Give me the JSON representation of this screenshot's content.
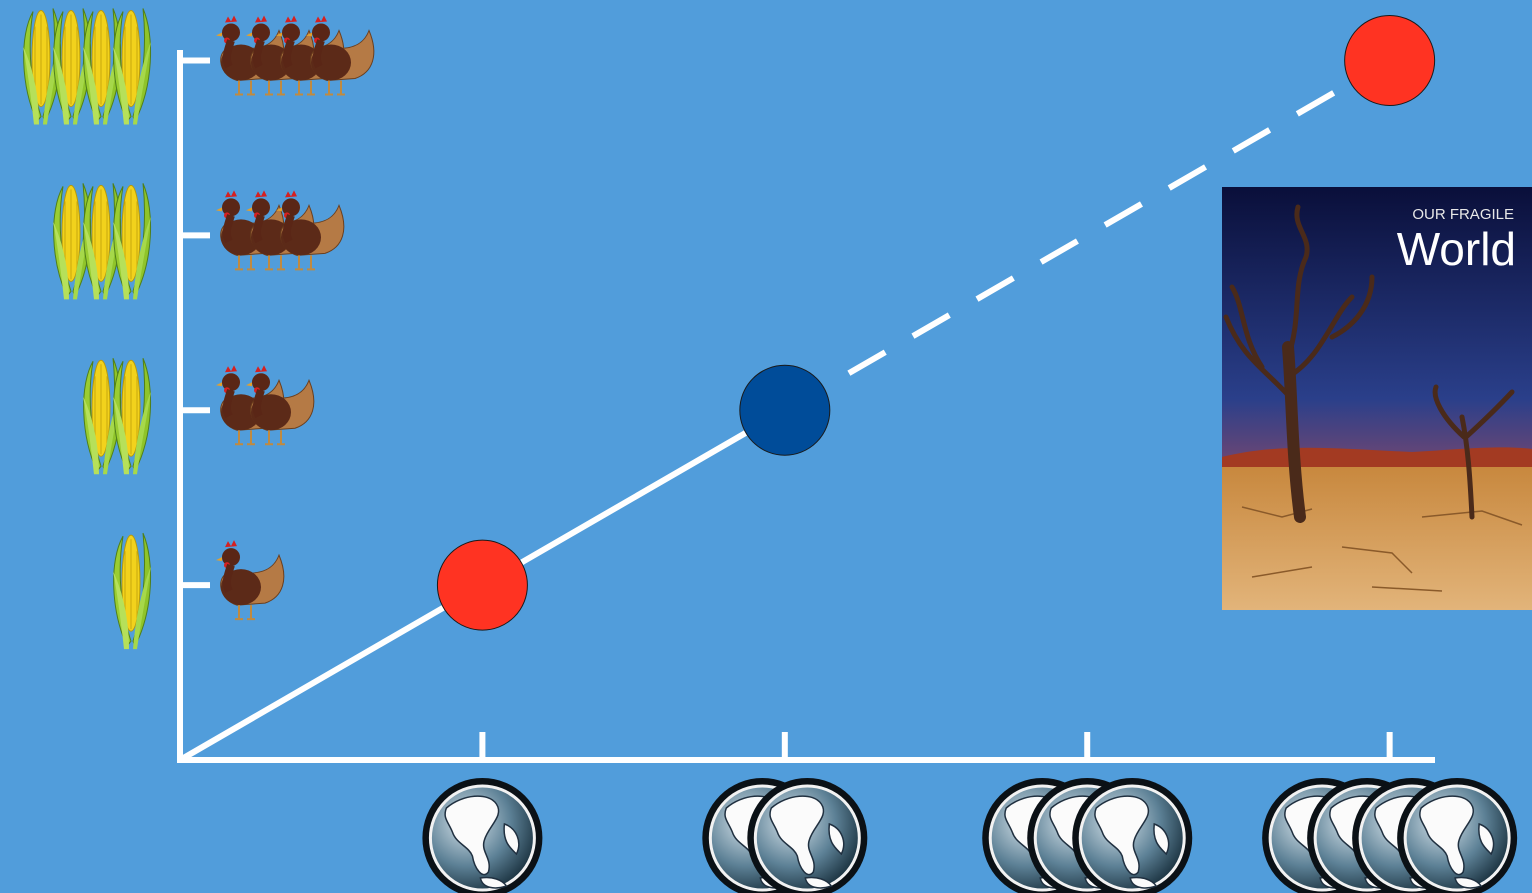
{
  "chart_data": {
    "type": "line",
    "x": [
      0,
      1,
      2,
      4
    ],
    "values": [
      0,
      1,
      2,
      4
    ],
    "point_colors": [
      null,
      "#ff3322",
      "#004c99",
      "#ff3322"
    ],
    "segment_styles": [
      "solid",
      "solid",
      "dashed"
    ],
    "line_color": "#ffffff",
    "xlim": [
      0,
      4.15
    ],
    "ylim": [
      0,
      4.06
    ],
    "xticks": [
      1,
      2,
      3,
      4
    ],
    "yticks": [
      1,
      2,
      3,
      4
    ]
  },
  "book": {
    "title_line1": "OUR FRAGILE",
    "title_line2": "World"
  }
}
